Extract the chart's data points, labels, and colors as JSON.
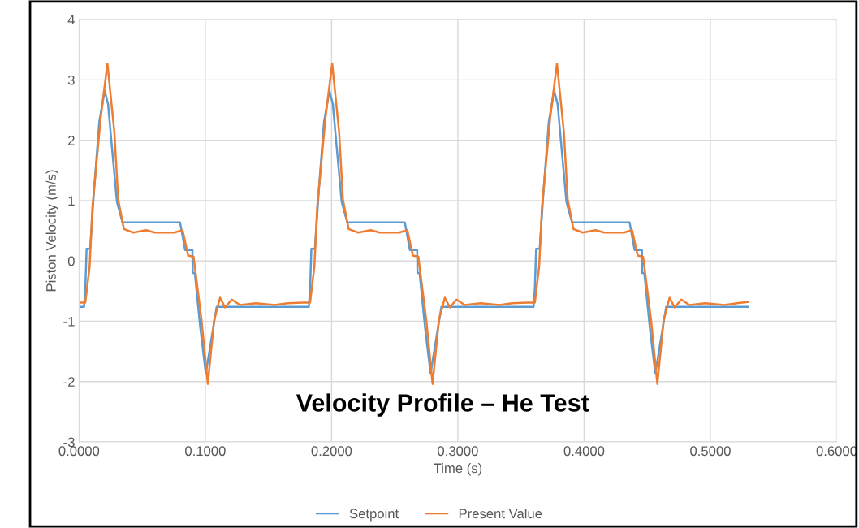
{
  "chart_data": {
    "type": "line",
    "title": "Velocity Profile – He Test",
    "xlabel": "Time (s)",
    "ylabel": "Piston Velocity (m/s)",
    "xlim": [
      0,
      0.6
    ],
    "xticks": [
      {
        "value": 0,
        "label": "0.0000"
      },
      {
        "value": 0.1,
        "label": "0.1000"
      },
      {
        "value": 0.2,
        "label": "0.2000"
      },
      {
        "value": 0.3,
        "label": "0.3000"
      },
      {
        "value": 0.4,
        "label": "0.4000"
      },
      {
        "value": 0.5,
        "label": "0.5000"
      },
      {
        "value": 0.6,
        "label": "0.6000"
      }
    ],
    "ylim": [
      -3,
      4
    ],
    "yticks": [
      -3,
      -2,
      -1,
      0,
      1,
      2,
      3,
      4
    ],
    "grid": true,
    "legend": "bottom",
    "marker": "none",
    "line_style": "solid",
    "series": [
      {
        "name": "Setpoint",
        "color": "#5b9bd5",
        "x": [
          0,
          0.004,
          0.005,
          0.006,
          0.0088,
          0.012,
          0.016,
          0.0203,
          0.023,
          0.026,
          0.03,
          0.0344,
          0.08,
          0.084,
          0.0898,
          0.09,
          0.0917,
          0.096,
          0.1004,
          0.104,
          0.109,
          0.1775,
          0.178,
          0.182,
          0.183,
          0.184,
          0.1868,
          0.19,
          0.194,
          0.1983,
          0.201,
          0.204,
          0.208,
          0.2124,
          0.258,
          0.262,
          0.2678,
          0.268,
          0.2697,
          0.274,
          0.2784,
          0.282,
          0.287,
          0.3555,
          0.356,
          0.36,
          0.361,
          0.362,
          0.3648,
          0.368,
          0.372,
          0.3763,
          0.379,
          0.382,
          0.386,
          0.3904,
          0.436,
          0.44,
          0.4458,
          0.446,
          0.4477,
          0.452,
          0.4564,
          0.46,
          0.465,
          0.53
        ],
        "values": [
          -0.76,
          -0.76,
          -0.45,
          0.2,
          0.2,
          1.2,
          2.3,
          2.82,
          2.6,
          1.9,
          0.98,
          0.64,
          0.64,
          0.18,
          0.18,
          -0.2,
          -0.2,
          -1.1,
          -1.87,
          -1.4,
          -0.76,
          -0.76,
          -0.76,
          -0.76,
          -0.45,
          0.2,
          0.2,
          1.2,
          2.3,
          2.82,
          2.6,
          1.9,
          0.98,
          0.64,
          0.64,
          0.18,
          0.18,
          -0.2,
          -0.2,
          -1.1,
          -1.87,
          -1.4,
          -0.76,
          -0.76,
          -0.76,
          -0.76,
          -0.45,
          0.2,
          0.2,
          1.2,
          2.3,
          2.82,
          2.6,
          1.9,
          0.98,
          0.64,
          0.64,
          0.18,
          0.18,
          -0.2,
          -0.2,
          -1.1,
          -1.87,
          -1.4,
          -0.76,
          -0.76
        ]
      },
      {
        "name": "Present Value",
        "color": "#ed7d31",
        "x": [
          0,
          0.005,
          0.0084,
          0.0106,
          0.0171,
          0.0225,
          0.028,
          0.031,
          0.0355,
          0.043,
          0.053,
          0.06,
          0.0755,
          0.082,
          0.0864,
          0.0907,
          0.097,
          0.102,
          0.107,
          0.1117,
          0.1156,
          0.121,
          0.1275,
          0.14,
          0.155,
          0.165,
          0.1775,
          0.178,
          0.183,
          0.1864,
          0.1886,
          0.1951,
          0.2005,
          0.206,
          0.209,
          0.2135,
          0.221,
          0.231,
          0.238,
          0.2535,
          0.26,
          0.2644,
          0.2687,
          0.275,
          0.28,
          0.285,
          0.2897,
          0.2936,
          0.299,
          0.3055,
          0.318,
          0.333,
          0.343,
          0.3555,
          0.356,
          0.361,
          0.3644,
          0.3666,
          0.3731,
          0.3785,
          0.384,
          0.387,
          0.3915,
          0.399,
          0.409,
          0.416,
          0.4315,
          0.438,
          0.4424,
          0.4467,
          0.453,
          0.458,
          0.463,
          0.4677,
          0.4716,
          0.477,
          0.4835,
          0.496,
          0.511,
          0.521,
          0.53
        ],
        "values": [
          -0.69,
          -0.69,
          -0.09,
          0.89,
          2.36,
          3.27,
          2.13,
          1.02,
          0.53,
          0.47,
          0.51,
          0.47,
          0.47,
          0.51,
          0.09,
          0.07,
          -0.98,
          -2.04,
          -0.98,
          -0.61,
          -0.77,
          -0.64,
          -0.73,
          -0.7,
          -0.73,
          -0.7,
          -0.69,
          -0.69,
          -0.69,
          -0.09,
          0.89,
          2.36,
          3.27,
          2.13,
          1.02,
          0.53,
          0.47,
          0.51,
          0.47,
          0.47,
          0.51,
          0.09,
          0.07,
          -0.98,
          -2.04,
          -0.98,
          -0.61,
          -0.77,
          -0.64,
          -0.73,
          -0.7,
          -0.73,
          -0.7,
          -0.69,
          -0.69,
          -0.69,
          -0.09,
          0.89,
          2.36,
          3.27,
          2.13,
          1.02,
          0.53,
          0.47,
          0.51,
          0.47,
          0.47,
          0.51,
          0.09,
          0.07,
          -0.98,
          -2.04,
          -0.98,
          -0.61,
          -0.77,
          -0.64,
          -0.73,
          -0.7,
          -0.73,
          -0.7,
          -0.68
        ]
      }
    ]
  }
}
